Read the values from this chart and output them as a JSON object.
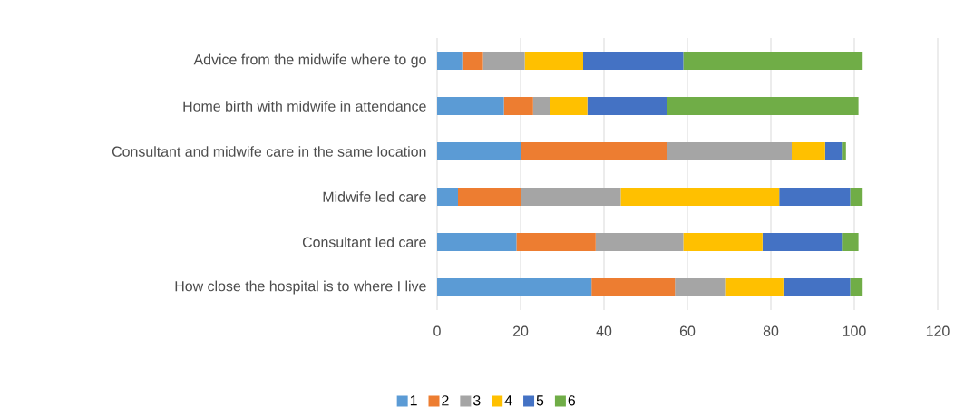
{
  "chart_data": {
    "type": "bar",
    "orientation": "horizontal",
    "stacked": true,
    "categories": [
      "Advice from the midwife where to go",
      "Home birth with midwife in attendance",
      "Consultant and midwife care in the same location",
      "Midwife led care",
      "Consultant led care",
      "How close the hospital is to where I live"
    ],
    "series": [
      {
        "name": "1",
        "color": "#5b9bd5",
        "values": [
          6,
          16,
          20,
          5,
          19,
          37
        ]
      },
      {
        "name": "2",
        "color": "#ed7d31",
        "values": [
          5,
          7,
          35,
          15,
          19,
          20
        ]
      },
      {
        "name": "3",
        "color": "#a5a5a5",
        "values": [
          10,
          4,
          30,
          24,
          21,
          12
        ]
      },
      {
        "name": "4",
        "color": "#ffc000",
        "values": [
          14,
          9,
          8,
          38,
          19,
          14
        ]
      },
      {
        "name": "5",
        "color": "#4472c4",
        "values": [
          24,
          19,
          4,
          17,
          19,
          16
        ]
      },
      {
        "name": "6",
        "color": "#70ad47",
        "values": [
          43,
          46,
          1,
          3,
          4,
          3
        ]
      }
    ],
    "xlim": [
      0,
      120
    ],
    "xticks": [
      0,
      20,
      40,
      60,
      80,
      100,
      120
    ],
    "grid": "x",
    "legend": "bottom"
  }
}
